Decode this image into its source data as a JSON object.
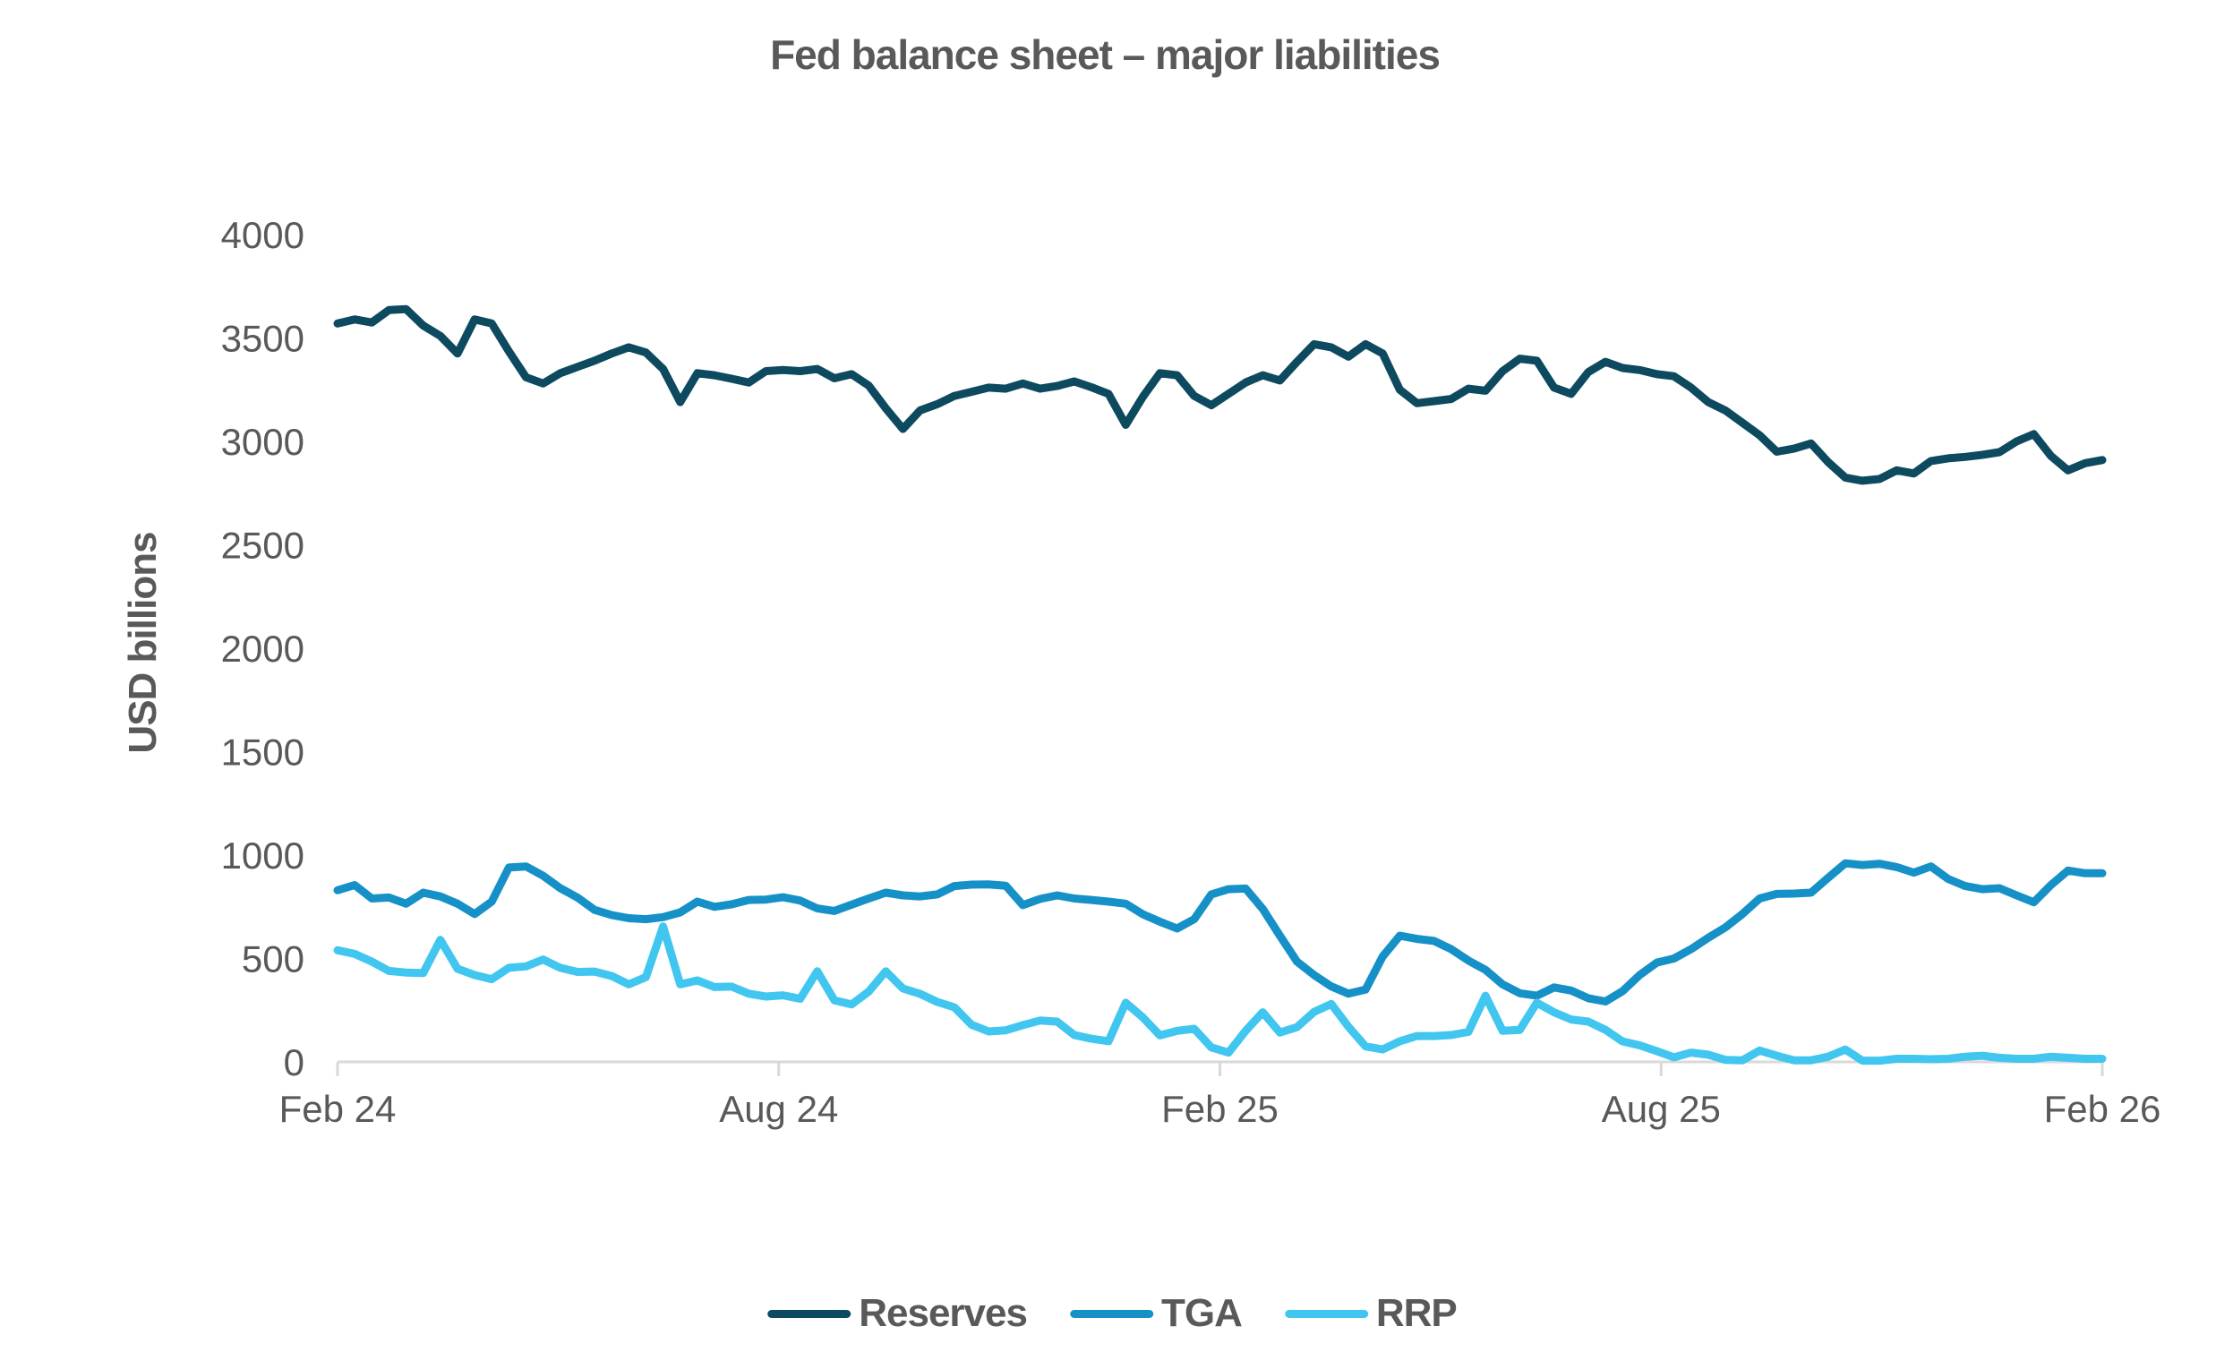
{
  "title": "Fed balance sheet – major liabilities",
  "colors": {
    "text": "#595959",
    "axis_line": "#d9d9d9",
    "background": "#ffffff",
    "reserves": "#0d4a5f",
    "tga": "#1591c8",
    "rrp": "#41c6f0"
  },
  "chart_data": {
    "type": "line",
    "title": "Fed balance sheet – major liabilities",
    "xlabel": "",
    "ylabel": "USD billions",
    "ylim": [
      0,
      4000
    ],
    "yticks": [
      0,
      500,
      1000,
      1500,
      2000,
      2500,
      3000,
      3500,
      4000
    ],
    "xticks": [
      {
        "label": "Feb 24",
        "pos": 0
      },
      {
        "label": "Aug 24",
        "pos": 0.25
      },
      {
        "label": "Feb 25",
        "pos": 0.5
      },
      {
        "label": "Aug 25",
        "pos": 0.75
      },
      {
        "label": "Feb 26",
        "pos": 1
      }
    ],
    "x_frequency": "weekly",
    "x_range": [
      "Feb 2024",
      "Feb 2026"
    ],
    "grid": false,
    "legend_position": "bottom",
    "series": [
      {
        "name": "Reserves",
        "color": "#0d4a5f",
        "values": [
          3570,
          3590,
          3575,
          3635,
          3640,
          3560,
          3510,
          3425,
          3590,
          3570,
          3435,
          3310,
          3280,
          3330,
          3360,
          3390,
          3425,
          3455,
          3430,
          3350,
          3190,
          3330,
          3320,
          3303,
          3285,
          3340,
          3345,
          3340,
          3350,
          3305,
          3325,
          3270,
          3160,
          3060,
          3150,
          3180,
          3220,
          3240,
          3260,
          3255,
          3280,
          3255,
          3268,
          3290,
          3262,
          3230,
          3080,
          3215,
          3330,
          3320,
          3220,
          3175,
          3230,
          3285,
          3320,
          3295,
          3385,
          3470,
          3455,
          3410,
          3470,
          3425,
          3250,
          3185,
          3195,
          3205,
          3255,
          3245,
          3340,
          3400,
          3390,
          3260,
          3230,
          3335,
          3385,
          3355,
          3345,
          3325,
          3315,
          3260,
          3190,
          3150,
          3090,
          3030,
          2950,
          2965,
          2990,
          2900,
          2825,
          2810,
          2818,
          2860,
          2845,
          2905,
          2918,
          2925,
          2935,
          2948,
          3000,
          3035,
          2930,
          2860,
          2895,
          2910
        ]
      },
      {
        "name": "TGA",
        "color": "#1591c8",
        "values": [
          830,
          855,
          790,
          795,
          765,
          818,
          800,
          765,
          715,
          775,
          940,
          945,
          900,
          840,
          795,
          735,
          710,
          695,
          690,
          700,
          723,
          775,
          750,
          762,
          783,
          785,
          796,
          780,
          742,
          730,
          760,
          790,
          818,
          805,
          800,
          810,
          850,
          857,
          858,
          852,
          758,
          788,
          805,
          790,
          783,
          775,
          765,
          714,
          678,
          645,
          690,
          810,
          835,
          838,
          740,
          610,
          485,
          420,
          365,
          330,
          350,
          510,
          610,
          595,
          585,
          545,
          490,
          445,
          375,
          332,
          320,
          360,
          345,
          308,
          292,
          342,
          420,
          480,
          500,
          545,
          600,
          650,
          715,
          790,
          812,
          814,
          818,
          890,
          960,
          952,
          958,
          942,
          915,
          945,
          885,
          850,
          835,
          840,
          805,
          772,
          855,
          925,
          912,
          912
        ]
      },
      {
        "name": "RRP",
        "color": "#41c6f0",
        "values": [
          540,
          522,
          485,
          440,
          432,
          430,
          590,
          450,
          420,
          400,
          455,
          462,
          495,
          455,
          435,
          437,
          415,
          375,
          410,
          655,
          375,
          394,
          362,
          364,
          330,
          316,
          322,
          305,
          438,
          298,
          278,
          340,
          438,
          355,
          329,
          290,
          264,
          180,
          147,
          153,
          178,
          200,
          195,
          130,
          112,
          100,
          286,
          215,
          128,
          150,
          160,
          70,
          45,
          150,
          240,
          142,
          168,
          242,
          280,
          170,
          75,
          60,
          100,
          125,
          125,
          130,
          145,
          320,
          150,
          155,
          286,
          240,
          205,
          195,
          155,
          99,
          80,
          52,
          22,
          45,
          35,
          10,
          8,
          55,
          30,
          8,
          8,
          25,
          60,
          6,
          6,
          15,
          15,
          13,
          15,
          25,
          30,
          20,
          15,
          15,
          25,
          20,
          15,
          15
        ]
      }
    ]
  }
}
